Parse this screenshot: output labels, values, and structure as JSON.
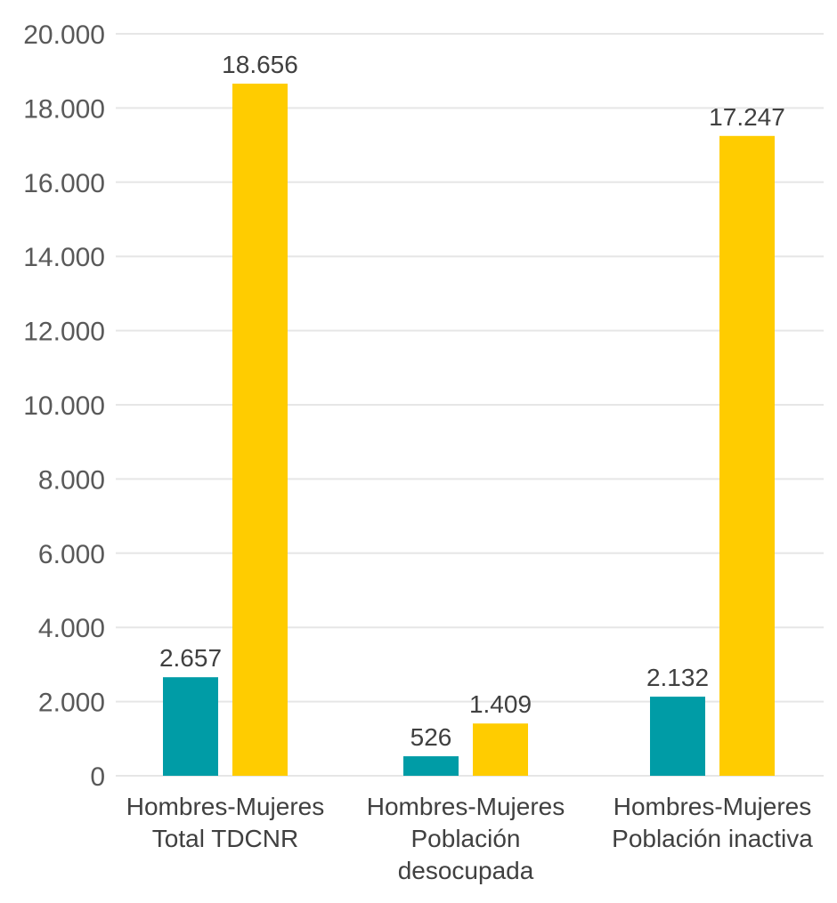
{
  "chart_data": {
    "type": "bar",
    "categories": [
      [
        "Hombres-Mujeres",
        "Total TDCNR"
      ],
      [
        "Hombres-Mujeres",
        "Población",
        "desocupada"
      ],
      [
        "Hombres-Mujeres",
        "Población inactiva"
      ]
    ],
    "series": [
      {
        "values": [
          2657,
          526,
          2132
        ],
        "labels": [
          "2.657",
          "526",
          "2.132"
        ],
        "color": "#009ca6"
      },
      {
        "values": [
          18656,
          1409,
          17247
        ],
        "labels": [
          "18.656",
          "1.409",
          "17.247"
        ],
        "color": "#ffcc00"
      }
    ],
    "y_ticks": [
      0,
      2000,
      4000,
      6000,
      8000,
      10000,
      12000,
      14000,
      16000,
      18000,
      20000
    ],
    "y_tick_labels": [
      "0",
      "2.000",
      "4.000",
      "6.000",
      "8.000",
      "10.000",
      "12.000",
      "14.000",
      "16.000",
      "18.000",
      "20.000"
    ],
    "ylim": [
      0,
      20000
    ],
    "grid": true,
    "legend": "none"
  }
}
